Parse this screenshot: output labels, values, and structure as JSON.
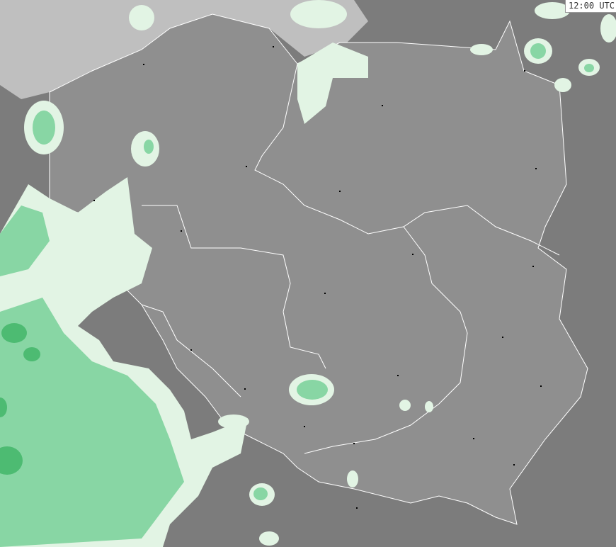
{
  "time_label": "12:00 UTC",
  "colors": {
    "sea": "#bfbfbf",
    "poland": "#8f8f8f",
    "neighbors": "#7c7c7c",
    "border": "#ffffff",
    "precip_light": "#e2f4e4",
    "precip_medium": "#88d6a4",
    "precip_heavy": "#4dbb72",
    "city": "#000000"
  }
}
